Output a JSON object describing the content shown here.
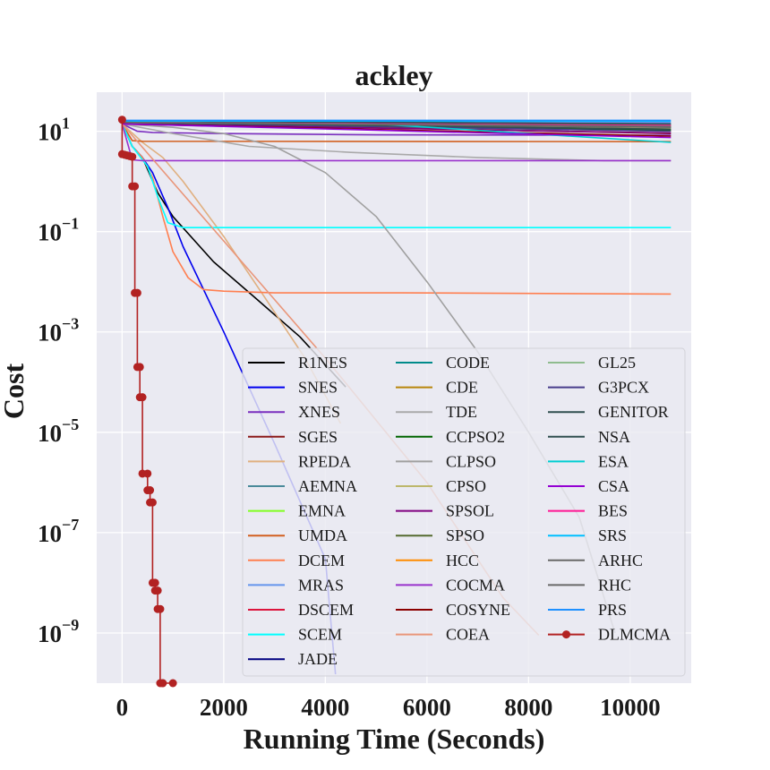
{
  "chart_data": {
    "type": "line",
    "title": "ackley",
    "xlabel": "Running Time (Seconds)",
    "ylabel": "Cost",
    "xlim": [
      -500,
      11200
    ],
    "ylim": [
      1e-10,
      60
    ],
    "yscale": "log",
    "grid": true,
    "legend_position": "lower right",
    "legend_columns": 3,
    "x_ticks": [
      {
        "value": 0,
        "label": "0"
      },
      {
        "value": 2000,
        "label": "2000"
      },
      {
        "value": 4000,
        "label": "4000"
      },
      {
        "value": 6000,
        "label": "6000"
      },
      {
        "value": 8000,
        "label": "8000"
      },
      {
        "value": 10000,
        "label": "10000"
      }
    ],
    "y_ticks": [
      {
        "value": 10,
        "base": "10",
        "exp": "1"
      },
      {
        "value": 0.1,
        "base": "10",
        "exp": "−1"
      },
      {
        "value": 0.001,
        "base": "10",
        "exp": "−3"
      },
      {
        "value": 1e-05,
        "base": "10",
        "exp": "−5"
      },
      {
        "value": 1e-07,
        "base": "10",
        "exp": "−7"
      },
      {
        "value": 1e-09,
        "base": "10",
        "exp": "−9"
      }
    ],
    "series": [
      {
        "name": "R1NES",
        "color": "#000000",
        "x": [
          0,
          200,
          400,
          700,
          1000,
          1800,
          2600,
          3500,
          4400
        ],
        "y": [
          14,
          5,
          3,
          0.6,
          0.2,
          0.025,
          0.005,
          0.0008,
          8e-05
        ]
      },
      {
        "name": "SNES",
        "color": "#0000ee",
        "x": [
          0,
          200,
          400,
          600,
          900,
          1200,
          2000,
          3000,
          4000,
          4200
        ],
        "y": [
          14,
          5,
          3,
          1.5,
          0.3,
          0.05,
          0.001,
          6e-06,
          3e-08,
          1.5e-10
        ]
      },
      {
        "name": "XNES",
        "color": "#7b2fbf",
        "x": [
          0,
          300,
          600,
          2000,
          5000,
          10800
        ],
        "y": [
          14,
          10,
          9.5,
          9,
          8.5,
          8.3
        ]
      },
      {
        "name": "SGES",
        "color": "#8b1a1a",
        "x": [
          0,
          10800
        ],
        "y": [
          15,
          9
        ]
      },
      {
        "name": "RPEDA",
        "color": "#e0b080",
        "x": [
          0,
          400,
          800,
          1200,
          2000,
          2800,
          3600,
          4300
        ],
        "y": [
          14,
          6,
          3,
          1,
          0.08,
          0.005,
          0.0003,
          1.5e-05
        ]
      },
      {
        "name": "AEMNA",
        "color": "#4a8a9a",
        "x": [
          0,
          10800
        ],
        "y": [
          16,
          12
        ]
      },
      {
        "name": "EMNA",
        "color": "#80ff20",
        "x": [
          0,
          10800
        ],
        "y": [
          15.5,
          11
        ]
      },
      {
        "name": "UMDA",
        "color": "#d26020",
        "x": [
          0,
          200,
          400,
          10800
        ],
        "y": [
          14,
          6.5,
          6.3,
          6.2
        ]
      },
      {
        "name": "DCEM",
        "color": "#ff7f50",
        "x": [
          0,
          200,
          400,
          600,
          800,
          1000,
          1300,
          1600,
          2000,
          3000,
          5500,
          10800
        ],
        "y": [
          14,
          5,
          3,
          1.2,
          0.2,
          0.04,
          0.012,
          0.007,
          0.0065,
          0.006,
          0.006,
          0.0057
        ]
      },
      {
        "name": "MRAS",
        "color": "#6495ed",
        "x": [
          0,
          10800
        ],
        "y": [
          16,
          15
        ]
      },
      {
        "name": "DSCEM",
        "color": "#dc143c",
        "x": [
          0,
          10800
        ],
        "y": [
          15,
          13
        ]
      },
      {
        "name": "SCEM",
        "color": "#00ffff",
        "x": [
          0,
          200,
          500,
          700,
          900,
          1200,
          2000,
          10800
        ],
        "y": [
          14,
          5,
          2,
          0.5,
          0.15,
          0.12,
          0.12,
          0.12
        ]
      },
      {
        "name": "JADE",
        "color": "#000080",
        "x": [
          0,
          10800
        ],
        "y": [
          14,
          12
        ]
      },
      {
        "name": "CODE",
        "color": "#008b8b",
        "x": [
          0,
          10800
        ],
        "y": [
          16,
          14
        ]
      },
      {
        "name": "CDE",
        "color": "#b8860b",
        "x": [
          0,
          10800
        ],
        "y": [
          15,
          10
        ]
      },
      {
        "name": "TDE",
        "color": "#a9a9a9",
        "x": [
          0,
          1000,
          2500,
          4500,
          7000,
          9500,
          10800
        ],
        "y": [
          14,
          9,
          5,
          3.8,
          3,
          2.6,
          2.6
        ]
      },
      {
        "name": "CCPSO2",
        "color": "#006400",
        "x": [
          0,
          10800
        ],
        "y": [
          15,
          10.5
        ]
      },
      {
        "name": "CLPSO",
        "color": "#a0a0a0",
        "x": [
          0,
          1000,
          2000,
          3000,
          4000,
          5000,
          6000,
          7000,
          8000,
          9000,
          9700
        ],
        "y": [
          14,
          12,
          9,
          5,
          1.5,
          0.2,
          0.01,
          0.0004,
          1e-05,
          2e-07,
          1e-09
        ]
      },
      {
        "name": "CPSO",
        "color": "#bdb76b",
        "x": [
          0,
          10800
        ],
        "y": [
          15,
          11.5
        ]
      },
      {
        "name": "SPSOL",
        "color": "#800080",
        "x": [
          0,
          10800
        ],
        "y": [
          14,
          9.2
        ]
      },
      {
        "name": "SPSO",
        "color": "#556b2f",
        "x": [
          0,
          10800
        ],
        "y": [
          15,
          11
        ]
      },
      {
        "name": "HCC",
        "color": "#ff8c00",
        "x": [
          0,
          10800
        ],
        "y": [
          15.5,
          12.5
        ]
      },
      {
        "name": "COCMA",
        "color": "#9932cc",
        "x": [
          0,
          200,
          400,
          10800
        ],
        "y": [
          14,
          2.7,
          2.6,
          2.6
        ]
      },
      {
        "name": "COSYNE",
        "color": "#8b0000",
        "x": [
          0,
          10800
        ],
        "y": [
          14,
          8
        ]
      },
      {
        "name": "COEA",
        "color": "#e9967a",
        "x": [
          0,
          4000,
          6000,
          7500,
          8200
        ],
        "y": [
          14,
          0.0003,
          1e-06,
          5e-09,
          9e-10
        ]
      },
      {
        "name": "GL25",
        "color": "#8fbc8f",
        "x": [
          0,
          10800
        ],
        "y": [
          16,
          13.5
        ]
      },
      {
        "name": "G3PCX",
        "color": "#483d8b",
        "x": [
          0,
          10800
        ],
        "y": [
          15,
          10
        ]
      },
      {
        "name": "GENITOR",
        "color": "#2f4f4f",
        "x": [
          0,
          10800
        ],
        "y": [
          15,
          11
        ]
      },
      {
        "name": "NSA",
        "color": "#2f4f4f",
        "x": [
          0,
          10800
        ],
        "y": [
          16,
          14
        ]
      },
      {
        "name": "ESA",
        "color": "#00ced1",
        "x": [
          0,
          5000,
          8000,
          10800
        ],
        "y": [
          15,
          14,
          9,
          6
        ]
      },
      {
        "name": "CSA",
        "color": "#9400d3",
        "x": [
          0,
          10800
        ],
        "y": [
          14,
          7.5
        ]
      },
      {
        "name": "BES",
        "color": "#ff1493",
        "x": [
          0,
          10800
        ],
        "y": [
          15,
          13
        ]
      },
      {
        "name": "SRS",
        "color": "#00bfff",
        "x": [
          0,
          10800
        ],
        "y": [
          16,
          16
        ]
      },
      {
        "name": "ARHC",
        "color": "#696969",
        "x": [
          0,
          10800
        ],
        "y": [
          15,
          12
        ]
      },
      {
        "name": "RHC",
        "color": "#696969",
        "x": [
          0,
          10800
        ],
        "y": [
          15,
          12.5
        ]
      },
      {
        "name": "PRS",
        "color": "#1e90ff",
        "x": [
          0,
          10800
        ],
        "y": [
          16.5,
          16.5
        ]
      },
      {
        "name": "DLMCMA",
        "color": "#b22222",
        "marker": "circle",
        "x": [
          0,
          0,
          50,
          100,
          150,
          200,
          200,
          250,
          250,
          300,
          300,
          350,
          350,
          400,
          400,
          500,
          500,
          550,
          550,
          600,
          600,
          650,
          650,
          700,
          700,
          750,
          750,
          800,
          800,
          1000
        ],
        "y": [
          17,
          3.5,
          3.4,
          3.3,
          3.2,
          3.1,
          0.8,
          0.8,
          0.006,
          0.006,
          0.0002,
          0.0002,
          5e-05,
          5e-05,
          1.5e-06,
          1.5e-06,
          7e-07,
          7e-07,
          4e-07,
          4e-07,
          1e-08,
          1e-08,
          7e-09,
          7e-09,
          3e-09,
          3e-09,
          1e-10,
          1e-10,
          1e-10,
          1e-10
        ]
      }
    ]
  }
}
